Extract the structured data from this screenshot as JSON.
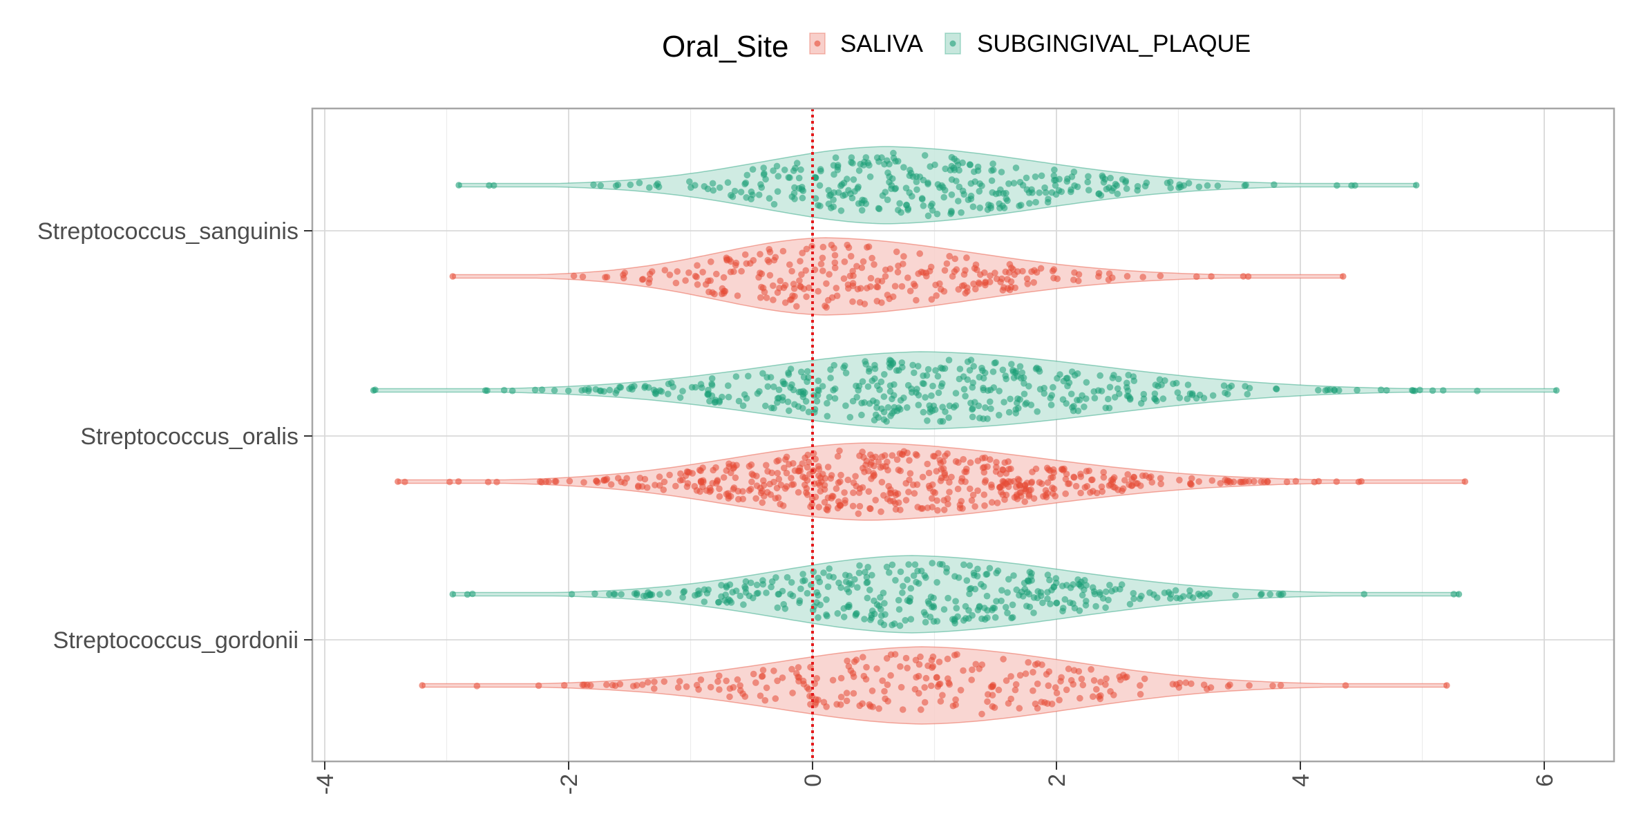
{
  "legend": {
    "title": "Oral_Site",
    "items": [
      {
        "label": "SALIVA",
        "color": "#E64B35",
        "fill": "#F8CFCA"
      },
      {
        "label": "SUBGINGIVAL_PLAQUE",
        "color": "#1B9E77",
        "fill": "#C7E7DD"
      }
    ]
  },
  "chart_data": {
    "type": "scatter",
    "subtype": "violin-with-jittered-points, horizontal",
    "title": "",
    "xlabel": "",
    "ylabel": "",
    "xlim": [
      -4.1,
      6.6
    ],
    "x_ticks": [
      -4,
      -2,
      0,
      2,
      4,
      6
    ],
    "x_tick_labels": [
      "-4",
      "-2",
      "0",
      "2",
      "4",
      "6"
    ],
    "reference_line": {
      "x": 0,
      "style": "dotted",
      "color": "#E41A1C"
    },
    "categories": [
      "Streptococcus_sanguinis",
      "Streptococcus_oralis",
      "Streptococcus_gordonii"
    ],
    "grid": true,
    "legend_position": "top",
    "series": [
      {
        "name": "SALIVA",
        "color": "#E64B35",
        "distributions": [
          {
            "category": "Streptococcus_sanguinis",
            "min": -2.95,
            "max": 4.35,
            "peak": 0.1,
            "n_points": 260
          },
          {
            "category": "Streptococcus_oralis",
            "min": -3.4,
            "max": 5.35,
            "peak": 0.45,
            "n_points": 520
          },
          {
            "category": "Streptococcus_gordonii",
            "min": -3.2,
            "max": 5.2,
            "peak": 0.9,
            "n_points": 240
          }
        ]
      },
      {
        "name": "SUBGINGIVAL_PLAQUE",
        "color": "#1B9E77",
        "distributions": [
          {
            "category": "Streptococcus_sanguinis",
            "min": -2.9,
            "max": 4.95,
            "peak": 0.6,
            "n_points": 320
          },
          {
            "category": "Streptococcus_oralis",
            "min": -3.6,
            "max": 6.1,
            "peak": 0.9,
            "n_points": 420
          },
          {
            "category": "Streptococcus_gordonii",
            "min": -2.95,
            "max": 5.3,
            "peak": 0.8,
            "n_points": 360
          }
        ]
      }
    ]
  }
}
